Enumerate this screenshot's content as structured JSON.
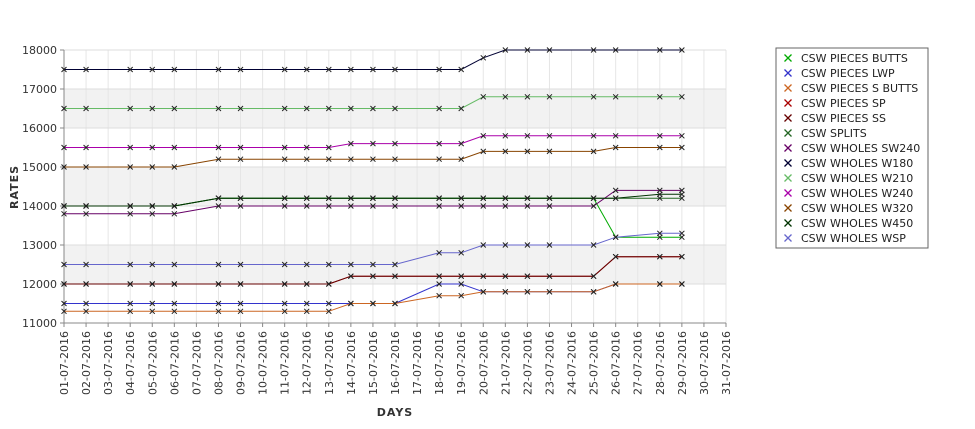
{
  "chart_data": {
    "type": "line",
    "xlabel": "DAYS",
    "ylabel": "RATES",
    "ylim": [
      11000,
      18000
    ],
    "yticks": [
      11000,
      12000,
      13000,
      14000,
      15000,
      16000,
      17000,
      18000
    ],
    "grid": true,
    "legend_position": "right",
    "x": [
      "01-07-2016",
      "02-07-2016",
      "03-07-2016",
      "04-07-2016",
      "05-07-2016",
      "06-07-2016",
      "07-07-2016",
      "08-07-2016",
      "09-07-2016",
      "10-07-2016",
      "11-07-2016",
      "12-07-2016",
      "13-07-2016",
      "14-07-2016",
      "15-07-2016",
      "16-07-2016",
      "17-07-2016",
      "18-07-2016",
      "19-07-2016",
      "20-07-2016",
      "21-07-2016",
      "22-07-2016",
      "23-07-2016",
      "24-07-2016",
      "25-07-2016",
      "26-07-2016",
      "27-07-2016",
      "28-07-2016",
      "29-07-2016",
      "30-07-2016",
      "31-07-2016"
    ],
    "series": [
      {
        "name": "CSW PIECES BUTTS",
        "color": "#00aa00",
        "values": [
          14000,
          14000,
          null,
          14000,
          14000,
          14000,
          null,
          14200,
          14200,
          null,
          14200,
          14200,
          14200,
          14200,
          14200,
          14200,
          null,
          14200,
          14200,
          14200,
          14200,
          14200,
          14200,
          null,
          14200,
          13200,
          null,
          13200,
          13200,
          null,
          null
        ]
      },
      {
        "name": "CSW PIECES LWP",
        "color": "#3333cc",
        "values": [
          11500,
          11500,
          null,
          11500,
          11500,
          11500,
          null,
          11500,
          11500,
          null,
          11500,
          11500,
          11500,
          11500,
          11500,
          11500,
          null,
          12000,
          12000,
          11800,
          11800,
          11800,
          11800,
          null,
          11800,
          12000,
          null,
          12000,
          12000,
          null,
          null
        ]
      },
      {
        "name": "CSW PIECES S BUTTS",
        "color": "#cc6622",
        "values": [
          11300,
          11300,
          null,
          11300,
          11300,
          11300,
          null,
          11300,
          11300,
          null,
          11300,
          11300,
          11300,
          11500,
          11500,
          11500,
          null,
          11700,
          11700,
          11800,
          11800,
          11800,
          11800,
          null,
          11800,
          12000,
          null,
          12000,
          12000,
          null,
          null
        ]
      },
      {
        "name": "CSW PIECES SP",
        "color": "#aa0000",
        "values": [
          12000,
          12000,
          null,
          12000,
          12000,
          12000,
          null,
          12000,
          12000,
          null,
          12000,
          12000,
          12000,
          12200,
          12200,
          12200,
          null,
          12200,
          12200,
          12200,
          12200,
          12200,
          12200,
          null,
          12200,
          12700,
          null,
          12700,
          12700,
          null,
          null
        ]
      },
      {
        "name": "CSW PIECES SS",
        "color": "#660000",
        "values": [
          12000,
          12000,
          null,
          12000,
          12000,
          12000,
          null,
          12000,
          12000,
          null,
          12000,
          12000,
          12000,
          12200,
          12200,
          12200,
          null,
          12200,
          12200,
          12200,
          12200,
          12200,
          12200,
          null,
          12200,
          12700,
          null,
          12700,
          12700,
          null,
          null
        ]
      },
      {
        "name": "CSW SPLITS",
        "color": "#226622",
        "values": [
          14000,
          14000,
          null,
          14000,
          14000,
          14000,
          null,
          14200,
          14200,
          null,
          14200,
          14200,
          14200,
          14200,
          14200,
          14200,
          null,
          14200,
          14200,
          14200,
          14200,
          14200,
          14200,
          null,
          14200,
          14200,
          null,
          14200,
          14200,
          null,
          null
        ]
      },
      {
        "name": "CSW WHOLES SW240",
        "color": "#660066",
        "values": [
          13800,
          13800,
          null,
          13800,
          13800,
          13800,
          null,
          14000,
          14000,
          null,
          14000,
          14000,
          14000,
          14000,
          14000,
          14000,
          null,
          14000,
          14000,
          14000,
          14000,
          14000,
          14000,
          null,
          14000,
          14400,
          null,
          14400,
          14400,
          null,
          null
        ]
      },
      {
        "name": "CSW WHOLES W180",
        "color": "#000033",
        "values": [
          17500,
          17500,
          null,
          17500,
          17500,
          17500,
          null,
          17500,
          17500,
          null,
          17500,
          17500,
          17500,
          17500,
          17500,
          17500,
          null,
          17500,
          17500,
          17800,
          18000,
          18000,
          18000,
          null,
          18000,
          18000,
          null,
          18000,
          18000,
          null,
          null
        ]
      },
      {
        "name": "CSW WHOLES W210",
        "color": "#66bb66",
        "values": [
          16500,
          16500,
          null,
          16500,
          16500,
          16500,
          null,
          16500,
          16500,
          null,
          16500,
          16500,
          16500,
          16500,
          16500,
          16500,
          null,
          16500,
          16500,
          16800,
          16800,
          16800,
          16800,
          null,
          16800,
          16800,
          null,
          16800,
          16800,
          null,
          null
        ]
      },
      {
        "name": "CSW WHOLES W240",
        "color": "#aa00aa",
        "values": [
          15500,
          15500,
          null,
          15500,
          15500,
          15500,
          null,
          15500,
          15500,
          null,
          15500,
          15500,
          15500,
          15600,
          15600,
          15600,
          null,
          15600,
          15600,
          15800,
          15800,
          15800,
          15800,
          null,
          15800,
          15800,
          null,
          15800,
          15800,
          null,
          null
        ]
      },
      {
        "name": "CSW WHOLES W320",
        "color": "#884400",
        "values": [
          15000,
          15000,
          null,
          15000,
          15000,
          15000,
          null,
          15200,
          15200,
          null,
          15200,
          15200,
          15200,
          15200,
          15200,
          15200,
          null,
          15200,
          15200,
          15400,
          15400,
          15400,
          15400,
          null,
          15400,
          15500,
          null,
          15500,
          15500,
          null,
          null
        ]
      },
      {
        "name": "CSW WHOLES W450",
        "color": "#003300",
        "values": [
          14000,
          14000,
          null,
          14000,
          14000,
          14000,
          null,
          14200,
          14200,
          null,
          14200,
          14200,
          14200,
          14200,
          14200,
          14200,
          null,
          14200,
          14200,
          14200,
          14200,
          14200,
          14200,
          null,
          14200,
          14200,
          null,
          14300,
          14300,
          null,
          null
        ]
      },
      {
        "name": "CSW WHOLES WSP",
        "color": "#6666cc",
        "values": [
          12500,
          12500,
          null,
          12500,
          12500,
          12500,
          null,
          12500,
          12500,
          null,
          12500,
          12500,
          12500,
          12500,
          12500,
          12500,
          null,
          12800,
          12800,
          13000,
          13000,
          13000,
          13000,
          null,
          13000,
          13200,
          null,
          13300,
          13300,
          null,
          null
        ]
      }
    ]
  }
}
